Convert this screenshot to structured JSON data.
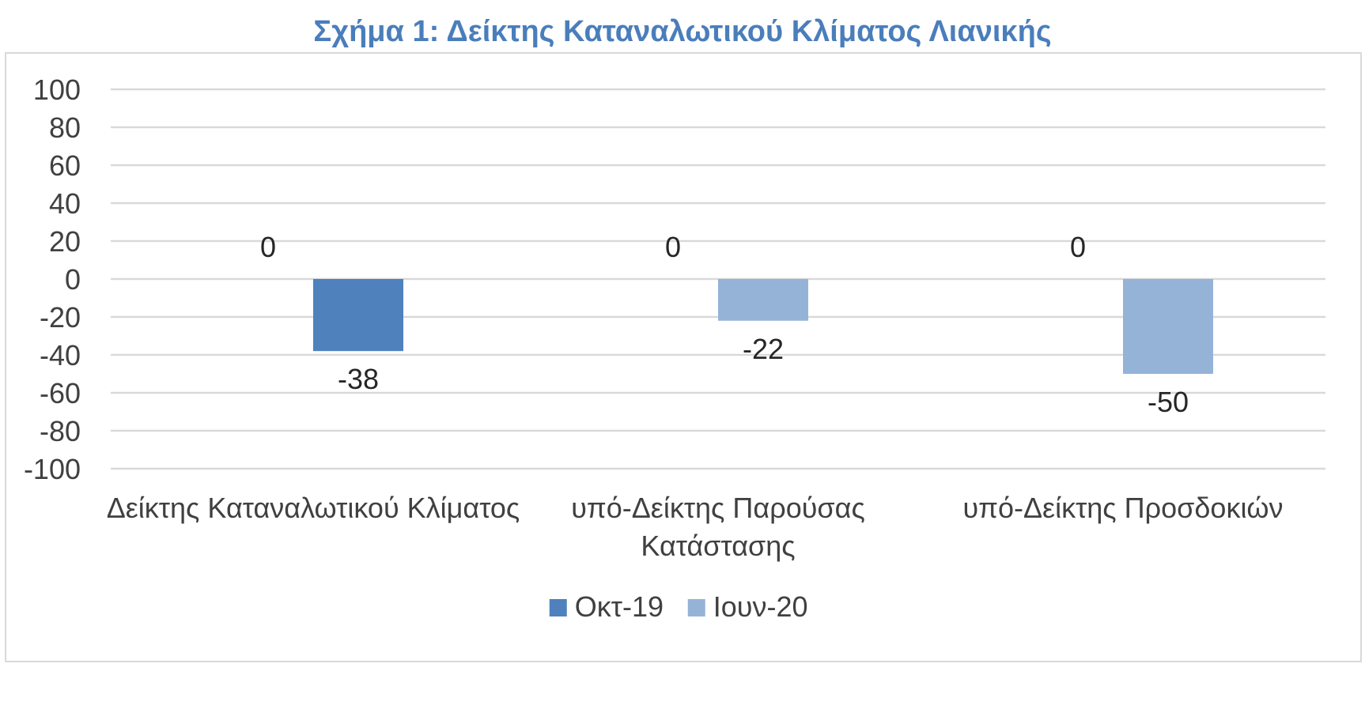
{
  "chart_data": {
    "type": "bar",
    "title": "Σχήμα 1: Δείκτης Καταναλωτικού Κλίματος Λιανικής",
    "categories": [
      [
        "Δείκτης Καταναλωτικού Κλίματος"
      ],
      [
        "υπό-Δείκτης Παρούσας",
        "Κατάστασης"
      ],
      [
        "υπό-Δείκτης Προσδοκιών"
      ]
    ],
    "series": [
      {
        "name": "Οκτ-19",
        "values": [
          0,
          0,
          0
        ],
        "color": "#4f81bd"
      },
      {
        "name": "Ιουν-20",
        "values": [
          -38,
          -22,
          -50
        ],
        "color": "#95b3d7"
      }
    ],
    "yticks": [
      "100",
      "80",
      "60",
      "40",
      "20",
      "0",
      "-20",
      "-40",
      "-60",
      "-80",
      "-100"
    ],
    "ylim": [
      -100,
      100
    ],
    "ystep": 20,
    "grid": true,
    "legend_position": "bottom",
    "special_bar_colors": {
      "1-0": "#4f81bd"
    },
    "gridline_color": "#d9d9d9",
    "plot_border_color": "#d9d9d9"
  }
}
